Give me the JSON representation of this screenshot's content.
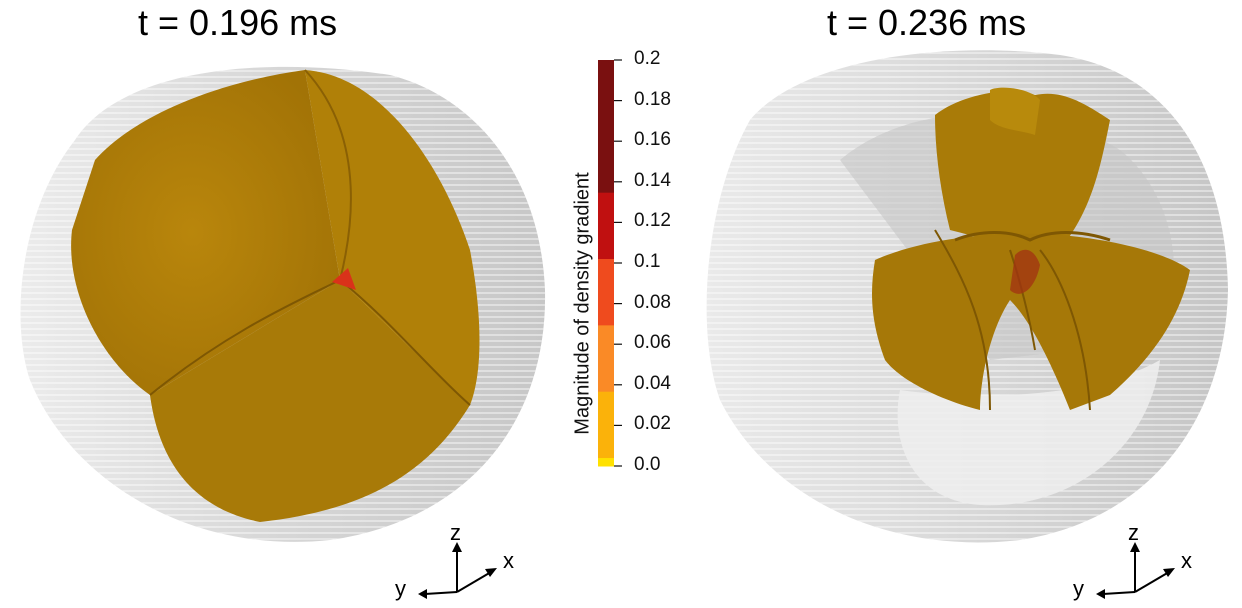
{
  "panels": [
    {
      "title": "t = 0.196 ms"
    },
    {
      "title": "t = 0.236 ms"
    }
  ],
  "colorbar": {
    "title": "Magnitude of density gradient",
    "ticks": [
      "0.2",
      "0.18",
      "0.16",
      "0.14",
      "0.12",
      "0.1",
      "0.08",
      "0.06",
      "0.04",
      "0.02",
      "0.0"
    ],
    "band_colors": [
      "#7a1010",
      "#c01010",
      "#ef4b1e",
      "#fa8a26",
      "#fbb20a",
      "#ffe100"
    ]
  },
  "axes": {
    "z": "z",
    "x": "x",
    "y": "y"
  },
  "colors": {
    "isosurface": "#b08008",
    "isosurface_dark": "#8a6004",
    "container": "#d6d6d6",
    "background": "#ffffff"
  }
}
